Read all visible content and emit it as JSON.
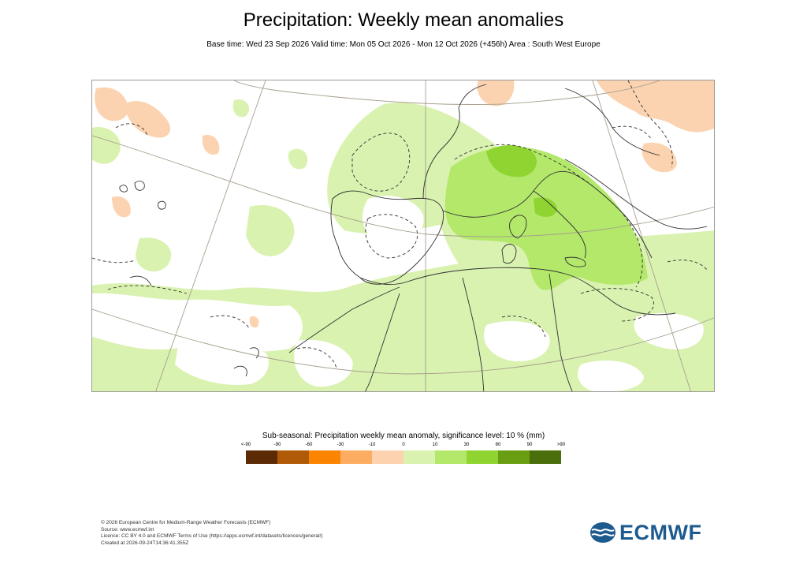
{
  "title": "Precipitation: Weekly mean anomalies",
  "subtitle": "Base time: Wed 23 Sep 2026 Valid time: Mon 05 Oct 2026 - Mon 12 Oct 2026 (+456h) Area : South West Europe",
  "map": {
    "area": "South West Europe",
    "colors": {
      "land_outline": "#303030",
      "graticule": "#a79f8c",
      "light_green": "#d9f2b0",
      "mid_green": "#b3e86b",
      "dark_green": "#8fd431",
      "light_orange": "#fcd3b0"
    }
  },
  "legend": {
    "title": "Sub-seasonal: Precipitation weekly mean anomaly, significance level: 10 % (mm)",
    "ticks": [
      "<-90",
      "-90",
      "-60",
      "-30",
      "-10",
      "0",
      "10",
      "30",
      "60",
      "90",
      ">90"
    ],
    "colors": [
      "#5c2b05",
      "#b05a07",
      "#fb8400",
      "#fdad62",
      "#fdd3af",
      "#d9f2b0",
      "#b3e86b",
      "#8fd431",
      "#6a9e12",
      "#4a6e0c"
    ]
  },
  "footer": {
    "line1": "© 2026 European Centre for Medium-Range Weather Forecasts (ECMWF)",
    "line2": "Source: www.ecmwf.int",
    "line3": "Licence: CC BY 4.0 and ECMWF Terms of Use (https://apps.ecmwf.int/datasets/licences/general/)",
    "line4": "Created at 2026-09-24T14:36:41.355Z"
  },
  "logo": {
    "text": "ECMWF",
    "color": "#1d5b8f"
  }
}
